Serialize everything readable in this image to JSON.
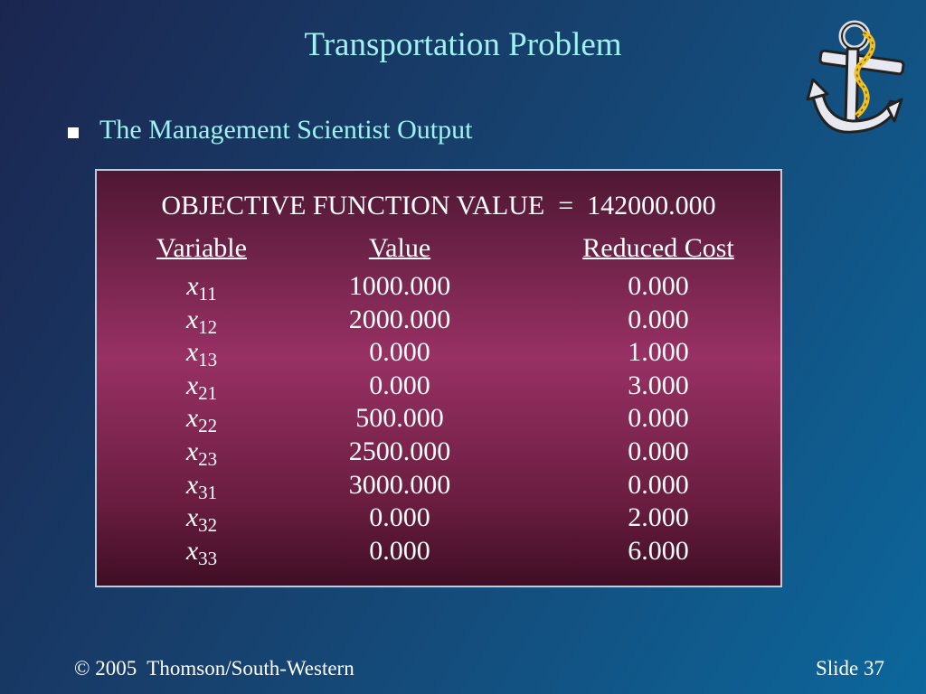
{
  "header": {
    "title": "Transportation Problem",
    "bullet": "The Management Scientist Output"
  },
  "table": {
    "objective": "OBJECTIVE FUNCTION VALUE  =  142000.000",
    "columns": [
      "Variable",
      "Value",
      "Reduced Cost"
    ],
    "rows": [
      {
        "var": "x",
        "sub": "11",
        "value": "1000.000",
        "reduced": "0.000"
      },
      {
        "var": "x",
        "sub": "12",
        "value": "2000.000",
        "reduced": "0.000"
      },
      {
        "var": "x",
        "sub": "13",
        "value": "0.000",
        "reduced": "1.000"
      },
      {
        "var": "x",
        "sub": "21",
        "value": "0.000",
        "reduced": "3.000"
      },
      {
        "var": "x",
        "sub": "22",
        "value": "500.000",
        "reduced": "0.000"
      },
      {
        "var": "x",
        "sub": "23",
        "value": "2500.000",
        "reduced": "0.000"
      },
      {
        "var": "x",
        "sub": "31",
        "value": "3000.000",
        "reduced": "0.000"
      },
      {
        "var": "x",
        "sub": "32",
        "value": "0.000",
        "reduced": "2.000"
      },
      {
        "var": "x",
        "sub": "33",
        "value": "0.000",
        "reduced": "6.000"
      }
    ]
  },
  "footer": {
    "copyright": "© 2005  Thomson/South-Western",
    "slide": "Slide 37"
  }
}
